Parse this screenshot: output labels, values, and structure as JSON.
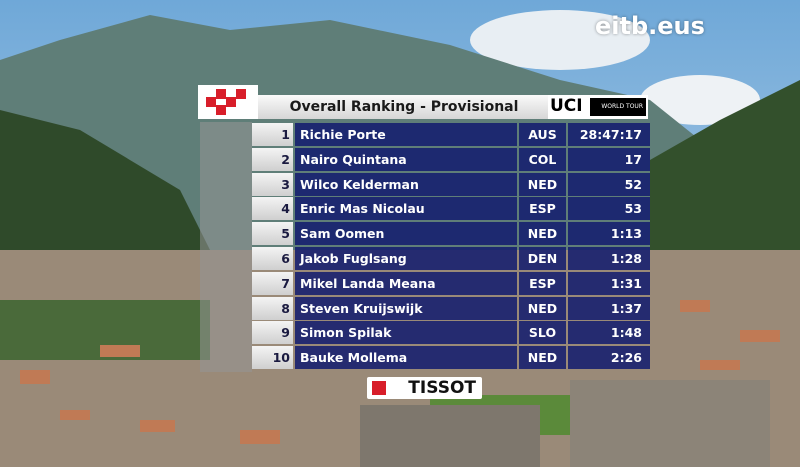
{
  "broadcaster": "eitb.eus",
  "header": {
    "title": "Overall Ranking - Provisional",
    "uci": "UCI",
    "tour": "WORLD TOUR"
  },
  "table": {
    "rows": [
      [
        1,
        "Richie Porte",
        "AUS",
        "28:47:17"
      ],
      [
        2,
        "Nairo Quintana",
        "COL",
        "17"
      ],
      [
        3,
        "Wilco Kelderman",
        "NED",
        "52"
      ],
      [
        4,
        "Enric Mas Nicolau",
        "ESP",
        "53"
      ],
      [
        5,
        "Sam Oomen",
        "NED",
        "1:13"
      ],
      [
        6,
        "Jakob Fuglsang",
        "DEN",
        "1:28"
      ],
      [
        7,
        "Mikel Landa Meana",
        "ESP",
        "1:31"
      ],
      [
        8,
        "Steven Kruijswijk",
        "NED",
        "1:37"
      ],
      [
        9,
        "Simon Spilak",
        "SLO",
        "1:48"
      ],
      [
        10,
        "Bauke Mollema",
        "NED",
        "2:26"
      ]
    ]
  },
  "sponsor": "TISSOT"
}
